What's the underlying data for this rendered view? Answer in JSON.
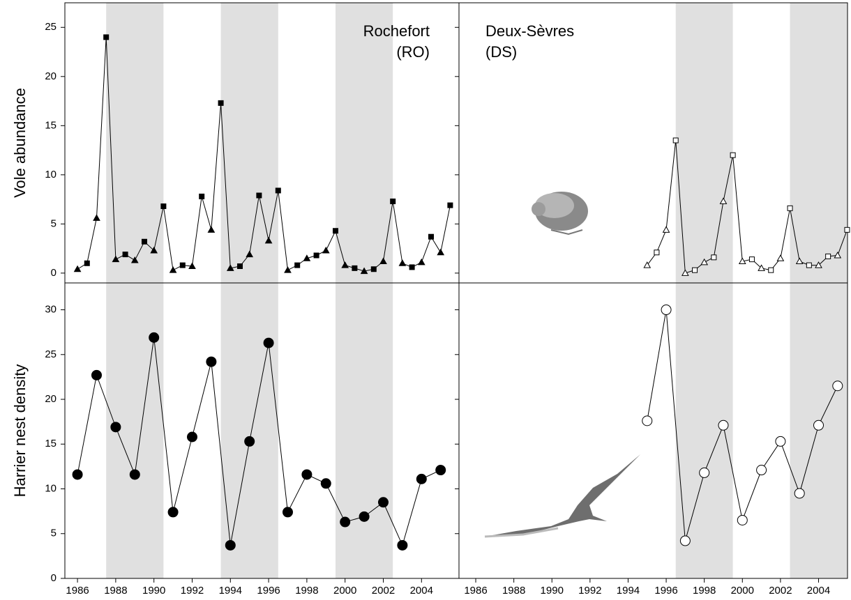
{
  "chart_data": [
    {
      "type": "line",
      "title": [
        "Rochefort",
        "(RO)"
      ],
      "ylabel": "Vole abundance",
      "xlim": [
        1985.34,
        2005.96
      ],
      "ylim": [
        -1,
        27.5
      ],
      "yticks": [
        0,
        5,
        10,
        15,
        20,
        25
      ],
      "ytick_labels": true,
      "bands": [
        [
          1987.5,
          1990.5
        ],
        [
          1993.5,
          1996.5
        ],
        [
          1999.5,
          2002.5
        ]
      ],
      "band_color": "#e0e0e0",
      "color": "#000000",
      "series": [
        {
          "marker": "triangle",
          "fill": "#000000",
          "x": [
            1986,
            1987,
            1988,
            1989,
            1990,
            1991,
            1992,
            1993,
            1994,
            1995,
            1996,
            1997,
            1998,
            1999,
            2000,
            2001,
            2002,
            2003,
            2004,
            2005
          ],
          "values": [
            0.4,
            5.6,
            1.4,
            1.3,
            2.3,
            0.3,
            0.7,
            4.4,
            0.5,
            1.9,
            3.3,
            0.3,
            1.5,
            2.3,
            0.8,
            0.2,
            1.2,
            1.0,
            1.1,
            2.1
          ]
        },
        {
          "marker": "square",
          "fill": "#000000",
          "x": [
            1986.5,
            1987.5,
            1988.5,
            1989.5,
            1990.5,
            1991.5,
            1992.5,
            1993.5,
            1994.5,
            1995.5,
            1996.5,
            1997.5,
            1998.5,
            1999.5,
            2000.5,
            2001.5,
            2002.5,
            2003.5,
            2004.5,
            2005.5
          ],
          "values": [
            1.0,
            24,
            1.9,
            3.2,
            6.8,
            0.8,
            7.8,
            17.3,
            0.7,
            7.9,
            8.4,
            0.8,
            1.8,
            4.3,
            0.5,
            0.4,
            7.3,
            0.6,
            3.7,
            6.9
          ]
        }
      ]
    },
    {
      "type": "line",
      "title": [
        "Deux-Sèvres",
        "(DS)"
      ],
      "xlim": [
        1985.12,
        2005.52
      ],
      "ylim": [
        -1,
        27.5
      ],
      "yticks": [
        0,
        5,
        10,
        15,
        20,
        25
      ],
      "ytick_labels": false,
      "bands": [
        [
          1996.5,
          1999.5
        ],
        [
          2002.5,
          2005.5
        ]
      ],
      "band_color": "#e0e0e0",
      "color": "#000000",
      "series": [
        {
          "marker": "triangle",
          "fill": "#ffffff",
          "x": [
            1995,
            1996,
            1997,
            1998,
            1999,
            2000,
            2001,
            2002,
            2003,
            2004,
            2005
          ],
          "values": [
            0.8,
            4.4,
            0.0,
            1.1,
            7.3,
            1.2,
            0.5,
            1.5,
            1.2,
            0.8,
            1.8
          ]
        },
        {
          "marker": "square",
          "fill": "#ffffff",
          "x": [
            1995.5,
            1996.5,
            1997.5,
            1998.5,
            1999.5,
            2000.5,
            2001.5,
            2002.5,
            2003.5,
            2004.5,
            2005.5
          ],
          "values": [
            2.1,
            13.5,
            0.3,
            1.6,
            12.0,
            1.4,
            0.3,
            6.6,
            0.8,
            1.7,
            4.4
          ]
        }
      ]
    },
    {
      "type": "line",
      "ylabel": "Harrier nest density",
      "xlim": [
        1985.34,
        2005.96
      ],
      "ylim": [
        0,
        33
      ],
      "yticks": [
        0,
        5,
        10,
        15,
        20,
        25,
        30
      ],
      "ytick_labels": true,
      "xticks": [
        1986,
        1988,
        1990,
        1992,
        1994,
        1996,
        1998,
        2000,
        2002,
        2004
      ],
      "bands": [
        [
          1987.5,
          1990.5
        ],
        [
          1993.5,
          1996.5
        ],
        [
          1999.5,
          2002.5
        ]
      ],
      "band_color": "#e0e0e0",
      "color": "#000000",
      "series": [
        {
          "marker": "circle",
          "fill": "#000000",
          "x": [
            1986,
            1987,
            1988,
            1989,
            1990,
            1991,
            1992,
            1993,
            1994,
            1995,
            1996,
            1997,
            1998,
            1999,
            2000,
            2001,
            2002,
            2003,
            2004,
            2005
          ],
          "values": [
            11.6,
            22.7,
            16.9,
            11.6,
            26.9,
            7.4,
            15.8,
            24.2,
            3.7,
            15.3,
            26.3,
            7.4,
            11.6,
            10.6,
            6.3,
            6.9,
            8.5,
            3.7,
            11.1,
            12.1
          ]
        }
      ]
    },
    {
      "type": "line",
      "xlim": [
        1985.12,
        2005.52
      ],
      "ylim": [
        0,
        33
      ],
      "yticks": [
        0,
        5,
        10,
        15,
        20,
        25,
        30
      ],
      "ytick_labels": false,
      "xticks": [
        1986,
        1988,
        1990,
        1992,
        1994,
        1996,
        1998,
        2000,
        2002,
        2004
      ],
      "bands": [
        [
          1996.5,
          1999.5
        ],
        [
          2002.5,
          2005.5
        ]
      ],
      "band_color": "#e0e0e0",
      "color": "#000000",
      "series": [
        {
          "marker": "circle",
          "fill": "#ffffff",
          "x": [
            1995,
            1996,
            1997,
            1998,
            1999,
            2000,
            2001,
            2002,
            2003,
            2004,
            2005
          ],
          "values": [
            17.6,
            30.0,
            4.2,
            11.8,
            17.1,
            6.5,
            12.1,
            15.3,
            9.5,
            17.1,
            21.5
          ]
        }
      ]
    }
  ]
}
